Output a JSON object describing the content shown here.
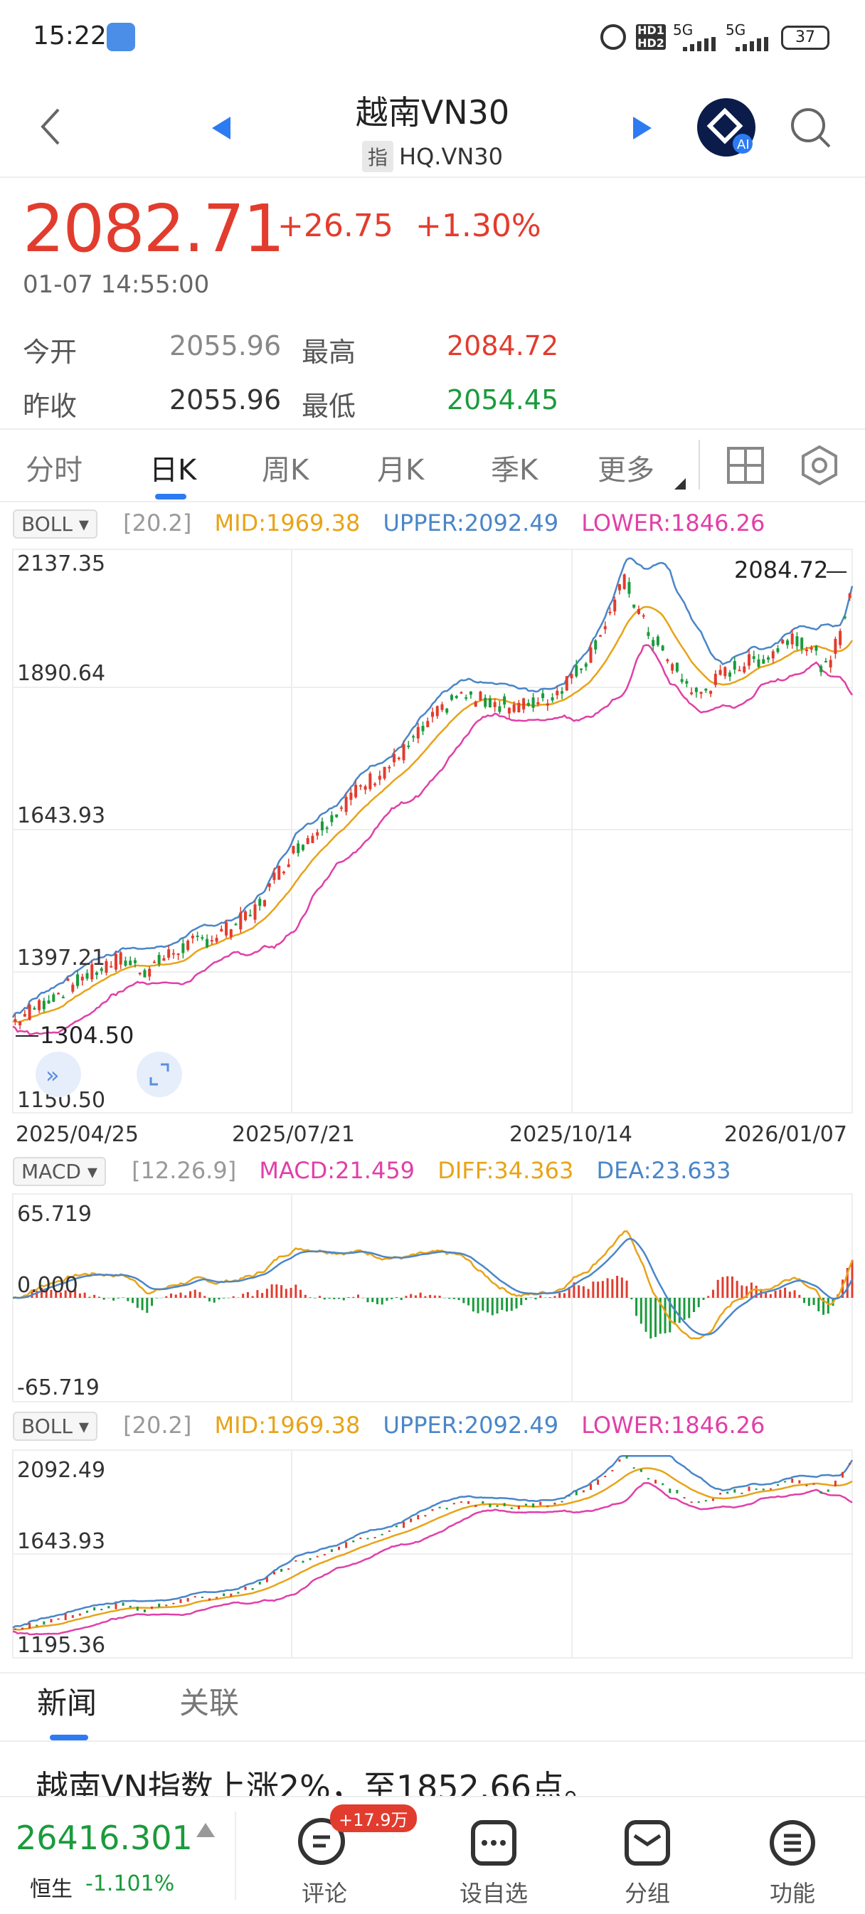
{
  "status": {
    "time": "15:22",
    "net1": "HD1 HD2",
    "sig1": "5G",
    "sig2": "5G",
    "battery": "37"
  },
  "header": {
    "title": "越南VN30",
    "tag": "指",
    "code": "HQ.VN30"
  },
  "quote": {
    "price": "2082.71",
    "change": "+26.75",
    "change_pct": "+1.30%",
    "datetime": "01-07  14:55:00",
    "open_label": "今开",
    "open": "2055.96",
    "high_label": "最高",
    "high": "2084.72",
    "prev_label": "昨收",
    "prev": "2055.96",
    "low_label": "最低",
    "low": "2054.45"
  },
  "tabs": [
    "分时",
    "日K",
    "周K",
    "月K",
    "季K",
    "更多"
  ],
  "active_tab": "日K",
  "boll_top": {
    "select": "BOLL",
    "param": "[20.2]",
    "mid": "MID:1969.38",
    "upper": "UPPER:2092.49",
    "lower": "LOWER:1846.26"
  },
  "main_chart": {
    "y_labels": [
      "2137.35",
      "1890.64",
      "1643.93",
      "1397.21",
      "1150.50"
    ],
    "x_labels": [
      "2025/04/25",
      "2025/07/21",
      "2025/10/14",
      "2026/01/07"
    ],
    "max_mark": "2084.72",
    "min_mark": "1304.50"
  },
  "macd": {
    "select": "MACD",
    "param": "[12.26.9]",
    "macd": "MACD:21.459",
    "diff": "DIFF:34.363",
    "dea": "DEA:23.633",
    "y_top": "65.719",
    "y_mid": "0.000",
    "y_bottom": "-65.719"
  },
  "boll_bottom": {
    "select": "BOLL",
    "param": "[20.2]",
    "mid": "MID:1969.38",
    "upper": "UPPER:2092.49",
    "lower": "LOWER:1846.26",
    "y_labels": [
      "2092.49",
      "1643.93",
      "1195.36"
    ]
  },
  "news": {
    "tab1": "新闻",
    "tab2": "关联",
    "headline": "越南VN指数上涨2%，至1852.66点。"
  },
  "bottom": {
    "index_value": "26416.301",
    "index_name": "恒生",
    "index_change": "-1.101%",
    "badge": "+17.9万",
    "items": [
      "评论",
      "设自选",
      "分组",
      "功能"
    ]
  },
  "colors": {
    "red": "#e23c2e",
    "green": "#1a9b3c",
    "blue": "#2d7bf2",
    "mid": "#e8a317",
    "upper": "#4a86c8",
    "lower": "#e040a8"
  }
}
